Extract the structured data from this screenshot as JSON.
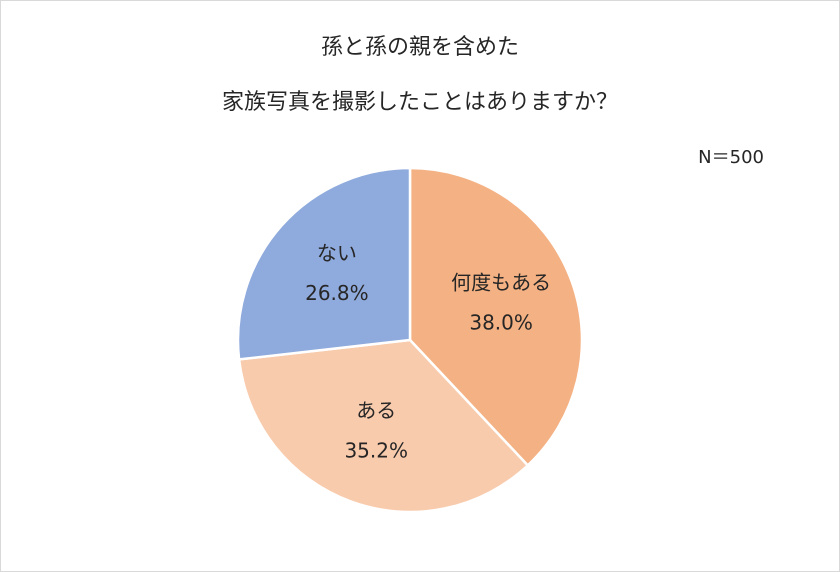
{
  "chart_data": {
    "type": "pie",
    "title": [
      "孫と孫の親を含めた",
      "家族写真を撮影したことはありますか？"
    ],
    "annotation": "N＝500",
    "categories": [
      "何度もある",
      "ある",
      "ない"
    ],
    "values": [
      38.0,
      35.2,
      26.8
    ],
    "value_labels": [
      "38.0%",
      "35.2%",
      "26.8%"
    ],
    "colors": [
      "#F4B183",
      "#F8CBAD",
      "#8FAADC"
    ]
  }
}
